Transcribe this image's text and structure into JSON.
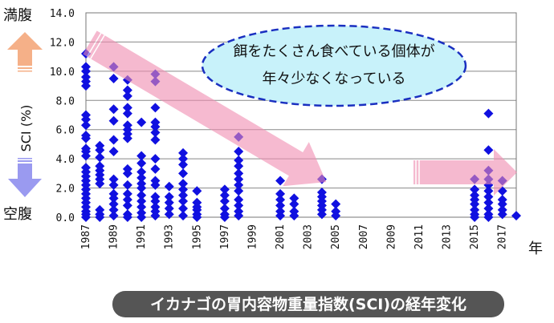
{
  "chart_data": {
    "type": "scatter",
    "title": "イカナゴの胃内容物重量指数(SCI)の経年変化",
    "xlabel": "年",
    "ylabel": "SCI (%)",
    "ylabel_top": "満腹",
    "ylabel_bottom": "空腹",
    "xlim": [
      1987,
      2018
    ],
    "ylim": [
      0,
      14
    ],
    "yticks": [
      "0.0",
      "2.0",
      "4.0",
      "6.0",
      "8.0",
      "10.0",
      "12.0",
      "14.0"
    ],
    "xticks": [
      "1987",
      "1989",
      "1991",
      "1993",
      "1995",
      "1997",
      "1999",
      "2001",
      "2003",
      "2005",
      "2007",
      "2009",
      "2011",
      "2013",
      "2015",
      "2017"
    ],
    "grid": true,
    "annotation": [
      "餌をたくさん食べている個体が",
      "年々少なくなっている"
    ],
    "marker_color": "#1010e0",
    "series": [
      {
        "year": 1987,
        "values": [
          11.2,
          10.3,
          10.0,
          9.6,
          9.3,
          9.0,
          7.0,
          6.7,
          6.3,
          5.6,
          5.4,
          4.7,
          4.5,
          4.2,
          3.4,
          3.1,
          2.8,
          2.5,
          2.2,
          1.9,
          1.6,
          1.3,
          1.0,
          0.7,
          0.4,
          0.2,
          0.0
        ]
      },
      {
        "year": 1988,
        "values": [
          4.9,
          4.6,
          4.1,
          3.5,
          3.2,
          2.9,
          2.6,
          2.3,
          0.5,
          0.2,
          0.0
        ]
      },
      {
        "year": 1989,
        "values": [
          10.3,
          9.5,
          7.4,
          6.6,
          5.3,
          4.5,
          2.6,
          2.2,
          1.6,
          1.3,
          0.9,
          0.5,
          0.1
        ]
      },
      {
        "year": 1990,
        "values": [
          9.4,
          8.7,
          8.3,
          7.5,
          7.1,
          6.3,
          6.0,
          5.7,
          5.4,
          3.3,
          3.0,
          2.2,
          1.6,
          1.2,
          0.8,
          0.2,
          0.0
        ]
      },
      {
        "year": 1991,
        "values": [
          6.5,
          4.2,
          3.7,
          3.1,
          2.7,
          2.3,
          2.0,
          1.5,
          1.1,
          0.7,
          0.3,
          0.0
        ]
      },
      {
        "year": 1992,
        "values": [
          9.8,
          9.3,
          7.5,
          6.5,
          6.2,
          5.8,
          5.3,
          4.0,
          3.3,
          2.5,
          2.2,
          1.4,
          1.1,
          0.7,
          0.4,
          0.1
        ]
      },
      {
        "year": 1993,
        "values": [
          2.1,
          1.4,
          1.0,
          0.6,
          0.2
        ]
      },
      {
        "year": 1994,
        "values": [
          4.4,
          4.0,
          3.6,
          3.0,
          2.3,
          1.9,
          1.5,
          1.1,
          0.6,
          0.1
        ]
      },
      {
        "year": 1995,
        "values": [
          1.8,
          1.0,
          0.7,
          0.5,
          0.2,
          0.0
        ]
      },
      {
        "year": 1997,
        "values": [
          1.9,
          1.5,
          1.1,
          0.6,
          0.2,
          0.0
        ]
      },
      {
        "year": 1998,
        "values": [
          5.5,
          4.5,
          3.9,
          3.5,
          3.0,
          2.6,
          2.2,
          1.8,
          1.2,
          0.8,
          0.4,
          0.1
        ]
      },
      {
        "year": 2001,
        "values": [
          2.5,
          1.6,
          1.2,
          0.8,
          0.4,
          0.1
        ]
      },
      {
        "year": 2002,
        "values": [
          1.3,
          0.9,
          0.4,
          0.1
        ]
      },
      {
        "year": 2004,
        "values": [
          2.6,
          1.7,
          1.4,
          1.1,
          0.8,
          0.5,
          0.2
        ]
      },
      {
        "year": 2005,
        "values": [
          0.9,
          0.4,
          0.1
        ]
      },
      {
        "year": 2015,
        "values": [
          2.6,
          1.9,
          1.5,
          1.2,
          0.9,
          0.5,
          0.2,
          0.0
        ]
      },
      {
        "year": 2016,
        "values": [
          7.1,
          4.6,
          3.2,
          2.6,
          2.2,
          1.8,
          1.4,
          1.0,
          0.6,
          0.2,
          0.0
        ]
      },
      {
        "year": 2017,
        "values": [
          2.5,
          1.8,
          1.2,
          0.9,
          0.5,
          0.2
        ]
      },
      {
        "year": 2018,
        "values": [
          0.1
        ]
      }
    ]
  }
}
